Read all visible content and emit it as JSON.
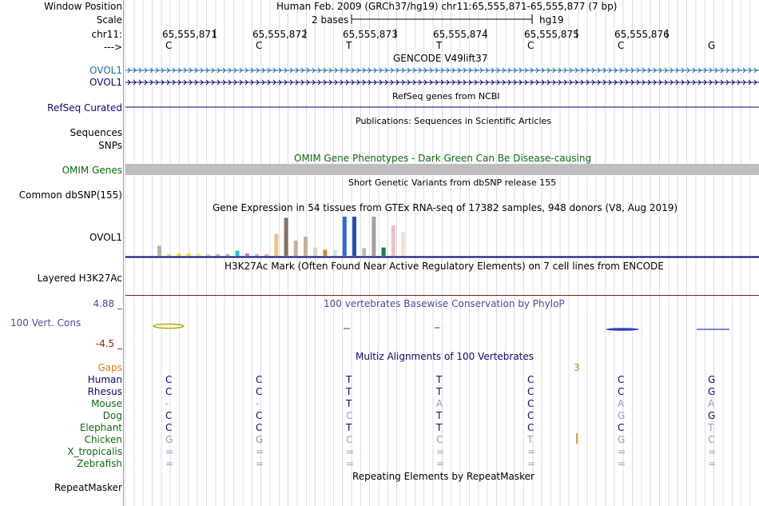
{
  "colors": {
    "navy": "#0a0a6e",
    "green": "#0b6b0b",
    "blue": "#1f5ea8",
    "orange": "#d08010",
    "red": "#8b1a1a",
    "gray": "#bebebe",
    "accent": "#4b4b9c"
  },
  "header": {
    "window_position_label": "Window Position",
    "window_position_value": "Human Feb. 2009 (GRCh37/hg19)   chr11:65,555,871-65,555,877 (7 bp)",
    "scale_label": "Scale",
    "scale_value": "2 bases",
    "scale_assembly": "hg19",
    "chrom_label": "chr11:",
    "strand_label": "--->",
    "positions": [
      "65,555,871",
      "65,555,872",
      "65,555,873",
      "65,555,874",
      "65,555,875",
      "65,555,876"
    ],
    "bases": [
      "C",
      "C",
      "T",
      "T",
      "C",
      "C",
      "G"
    ]
  },
  "tracks": {
    "gencode_title": "GENCODE V49lift37",
    "ovol1_a": "OVOL1",
    "ovol1_b": "OVOL1",
    "refseq_label": "RefSeq Curated",
    "refseq_title": "RefSeq genes from NCBI",
    "pubs_title": "Publications: Sequences in Scientific Articles",
    "sequences_label": "Sequences",
    "snps_label": "SNPs",
    "omim_title": "OMIM Gene Phenotypes - Dark Green Can Be Disease-causing",
    "omim_label": "OMIM Genes",
    "dbsnp_title": "Short Genetic Variants from dbSNP release 155",
    "dbsnp_label": "Common dbSNP(155)",
    "gtex_title": "Gene Expression in 54 tissues from GTEx RNA-seq of 17382 samples, 948 donors (V8, Aug 2019)",
    "gtex_label": "OVOL1",
    "h3k_title": "H3K27Ac Mark (Often Found Near Active Regulatory Elements) on 7 cell lines from ENCODE",
    "h3k_label": "Layered H3K27Ac",
    "phylop_max": "4.88 _",
    "phylop_title": "100 vertebrates Basewise Conservation by PhyloP",
    "phylop_label": "100 Vert. Cons",
    "phylop_min": "-4.5 _",
    "multiz_title": "Multiz Alignments of 100 Vertebrates",
    "gaps_label": "Gaps",
    "gaps_value": "3",
    "repeat_title": "Repeating Elements by RepeatMasker",
    "repeat_label": "RepeatMasker"
  },
  "species": [
    {
      "name": "Human",
      "color": "#0a0a6e",
      "bases": [
        "C",
        "C",
        "T",
        "T",
        "C",
        "C",
        "G"
      ],
      "dim": [
        false,
        false,
        false,
        false,
        false,
        false,
        false
      ]
    },
    {
      "name": "Rhesus",
      "color": "#0a0a6e",
      "bases": [
        "C",
        "C",
        "T",
        "T",
        "C",
        "C",
        "G"
      ],
      "dim": [
        false,
        false,
        false,
        false,
        false,
        false,
        false
      ]
    },
    {
      "name": "Mouse",
      "color": "#0b6b0b",
      "bases": [
        "-",
        "-",
        "T",
        "A",
        "C",
        "A",
        "A"
      ],
      "dim": [
        true,
        true,
        false,
        true,
        false,
        true,
        true
      ]
    },
    {
      "name": "Dog",
      "color": "#0b6b0b",
      "bases": [
        "C",
        "C",
        "C",
        "T",
        "C",
        "G",
        "G"
      ],
      "dim": [
        false,
        false,
        true,
        false,
        false,
        true,
        false
      ]
    },
    {
      "name": "Elephant",
      "color": "#0b6b0b",
      "bases": [
        "C",
        "C",
        "T",
        "T",
        "C",
        "C",
        "T"
      ],
      "dim": [
        false,
        false,
        false,
        false,
        false,
        false,
        true
      ]
    },
    {
      "name": "Chicken",
      "color": "#0b6b0b",
      "bases": [
        "G",
        "G",
        "C",
        "C",
        "T",
        "G",
        "C"
      ],
      "dim": [
        true,
        true,
        true,
        true,
        true,
        true,
        true
      ]
    },
    {
      "name": "X_tropicalis",
      "color": "#0b6b0b",
      "bases": [
        "=",
        "=",
        "=",
        "=",
        "=",
        "=",
        "="
      ],
      "dim": [
        true,
        true,
        true,
        true,
        true,
        true,
        true
      ]
    },
    {
      "name": "Zebrafish",
      "color": "#0b6b0b",
      "bases": [
        "=",
        "=",
        "=",
        "=",
        "=",
        "=",
        "="
      ],
      "dim": [
        true,
        true,
        true,
        true,
        true,
        true,
        true
      ]
    }
  ],
  "gtex_bars": [
    {
      "color": "#c2b29c",
      "value": 0.26
    },
    {
      "color": "#e0e070",
      "value": 0.05
    },
    {
      "color": "#e8e030",
      "value": 0.07
    },
    {
      "color": "#d8e848",
      "value": 0.07
    },
    {
      "color": "#f0f078",
      "value": 0.06
    },
    {
      "color": "#cccccc",
      "value": 0.04
    },
    {
      "color": "#b8b8b8",
      "value": 0.04
    },
    {
      "color": "#aaaaaa",
      "value": 0.04
    },
    {
      "color": "#18c8d8",
      "value": 0.13
    },
    {
      "color": "#c070e0",
      "value": 0.06
    },
    {
      "color": "#e0b0e0",
      "value": 0.05
    },
    {
      "color": "#eeaaaa",
      "value": 0.04
    },
    {
      "color": "#f0c080",
      "value": 0.56
    },
    {
      "color": "#8a7060",
      "value": 0.97
    },
    {
      "color": "#c8b098",
      "value": 0.39
    },
    {
      "color": "#c8b098",
      "value": 0.49
    },
    {
      "color": "#d8d0c0",
      "value": 0.21
    },
    {
      "color": "#c09020",
      "value": 0.15
    },
    {
      "color": "#d8d8f0",
      "value": 0.15
    },
    {
      "color": "#3068d8",
      "value": 1.0
    },
    {
      "color": "#2050b8",
      "value": 1.0
    },
    {
      "color": "#bcbcbc",
      "value": 0.2
    },
    {
      "color": "#a0a0a0",
      "value": 1.0
    },
    {
      "color": "#108040",
      "value": 0.21
    },
    {
      "color": "#f0c0c0",
      "value": 0.78
    },
    {
      "color": "#f8e0d0",
      "value": 0.6
    }
  ]
}
